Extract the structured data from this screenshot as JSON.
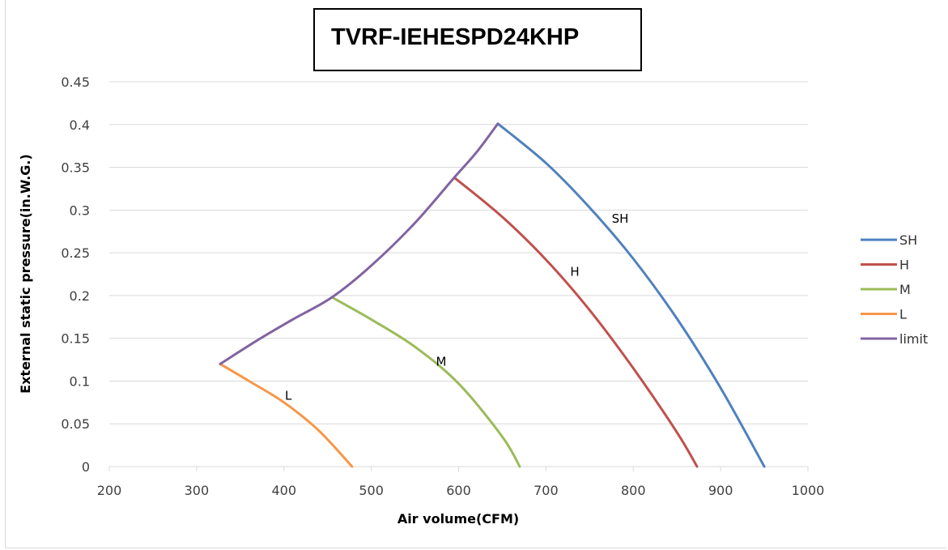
{
  "chart_data": {
    "type": "line",
    "title": "TVRF-IEHESPD24KHP",
    "xlabel": "Air volume(CFM)",
    "ylabel": "External static pressure(in.W.G.)",
    "xlim": [
      200,
      1000
    ],
    "ylim": [
      0,
      0.45
    ],
    "x_ticks": [
      200,
      300,
      400,
      500,
      600,
      700,
      800,
      900,
      1000
    ],
    "y_ticks": [
      0,
      0.05,
      0.1,
      0.15,
      0.2,
      0.25,
      0.3,
      0.35,
      0.4,
      0.45
    ],
    "y_tick_labels": [
      "0",
      "0.05",
      "0.1",
      "0.15",
      "0.2",
      "0.25",
      "0.3",
      "0.35",
      "0.4",
      "0.45"
    ],
    "grid": true,
    "legend_position": "right",
    "series": [
      {
        "name": "SH",
        "color": "#4f81bd",
        "label_at": [
          785,
          0.285
        ],
        "points": [
          [
            645,
            0.401
          ],
          [
            700,
            0.355
          ],
          [
            750,
            0.303
          ],
          [
            800,
            0.243
          ],
          [
            850,
            0.173
          ],
          [
            900,
            0.092
          ],
          [
            950,
            0.0
          ]
        ]
      },
      {
        "name": "H",
        "color": "#c0504d",
        "label_at": [
          733,
          0.223
        ],
        "points": [
          [
            595,
            0.338
          ],
          [
            650,
            0.292
          ],
          [
            700,
            0.242
          ],
          [
            750,
            0.183
          ],
          [
            800,
            0.115
          ],
          [
            850,
            0.04
          ],
          [
            873,
            0.0
          ]
        ]
      },
      {
        "name": "M",
        "color": "#9bbb59",
        "label_at": [
          580,
          0.118
        ],
        "points": [
          [
            455,
            0.198
          ],
          [
            500,
            0.172
          ],
          [
            550,
            0.14
          ],
          [
            600,
            0.097
          ],
          [
            650,
            0.035
          ],
          [
            670,
            0.0
          ]
        ]
      },
      {
        "name": "L",
        "color": "#f79646",
        "label_at": [
          405,
          0.078
        ],
        "points": [
          [
            327,
            0.12
          ],
          [
            360,
            0.1
          ],
          [
            400,
            0.075
          ],
          [
            440,
            0.042
          ],
          [
            478,
            0.0
          ]
        ]
      },
      {
        "name": "limit",
        "color": "#8064a2",
        "label_at": null,
        "points": [
          [
            327,
            0.12
          ],
          [
            370,
            0.148
          ],
          [
            410,
            0.172
          ],
          [
            455,
            0.198
          ],
          [
            500,
            0.235
          ],
          [
            550,
            0.285
          ],
          [
            595,
            0.338
          ],
          [
            620,
            0.367
          ],
          [
            645,
            0.401
          ]
        ]
      }
    ]
  }
}
